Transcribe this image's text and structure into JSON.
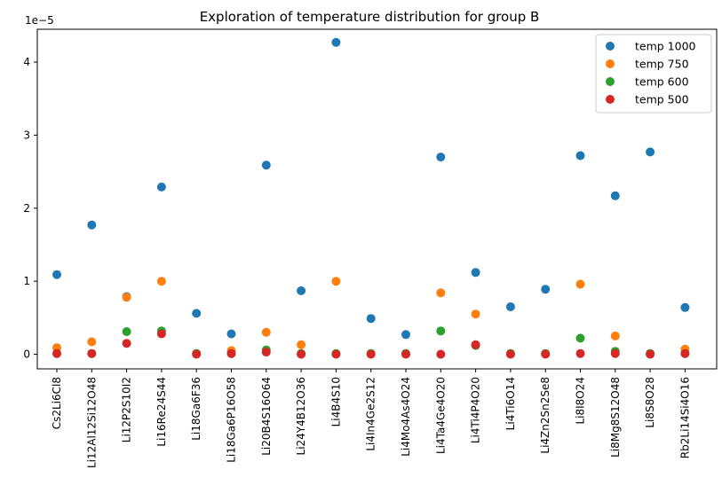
{
  "chart_data": {
    "type": "scatter",
    "title": "Exploration of temperature distribution for group B",
    "xlabel": "",
    "ylabel": "",
    "y_offset_label": "1e−5",
    "ylim": [
      -2e-06,
      4.45e-05
    ],
    "grid": false,
    "legend_position": "top-right",
    "categories": [
      "Cs2Li6Cl8",
      "Li12Al12Si12O48",
      "Li12P2S10I2",
      "Li16Re24S44",
      "Li18Ga6F36",
      "Li18Ga6P16O58",
      "Li20B4S16O64",
      "Li24Y4B12O36",
      "Li4B4S10",
      "Li4In4Ge2S12",
      "Li4Mo4As4O24",
      "Li4Ta4Ge4O20",
      "Li4Ti4P4O20",
      "Li4Ti6O14",
      "Li4Zn2Sn2Se8",
      "Li8I8O24",
      "Li8Mg8S12O48",
      "Li8S8O28",
      "Rb2Li14Si4O16"
    ],
    "yticks": [
      {
        "value": 0,
        "label": "0"
      },
      {
        "value": 1e-05,
        "label": "1"
      },
      {
        "value": 2e-05,
        "label": "2"
      },
      {
        "value": 3e-05,
        "label": "3"
      },
      {
        "value": 4e-05,
        "label": "4"
      }
    ],
    "series": [
      {
        "name": "temp 1000",
        "color": "#1f77b4",
        "values": [
          1.09e-05,
          1.77e-05,
          7.9e-06,
          2.29e-05,
          5.6e-06,
          2.8e-06,
          2.59e-05,
          8.7e-06,
          4.27e-05,
          4.9e-06,
          2.7e-06,
          2.7e-05,
          1.12e-05,
          6.5e-06,
          8.9e-06,
          2.72e-05,
          2.17e-05,
          2.77e-05,
          6.4e-06
        ]
      },
      {
        "name": "temp 750",
        "color": "#ff7f0e",
        "values": [
          9e-07,
          1.7e-06,
          7.8e-06,
          1e-05,
          1e-07,
          5e-07,
          3e-06,
          1.3e-06,
          1e-05,
          1e-07,
          1e-07,
          8.4e-06,
          5.5e-06,
          1e-07,
          1e-07,
          9.6e-06,
          2.5e-06,
          1e-07,
          7e-07
        ]
      },
      {
        "name": "temp 600",
        "color": "#2ca02c",
        "values": [
          1e-07,
          1e-07,
          3.1e-06,
          3.2e-06,
          1e-07,
          1e-07,
          6e-07,
          1e-07,
          1e-07,
          1e-07,
          1e-07,
          3.2e-06,
          1.2e-06,
          1e-07,
          1e-07,
          2.2e-06,
          4e-07,
          1e-07,
          1e-07
        ]
      },
      {
        "name": "temp 500",
        "color": "#d62728",
        "values": [
          1e-07,
          1e-07,
          1.5e-06,
          2.8e-06,
          0.0,
          1e-07,
          3e-07,
          0.0,
          0.0,
          0.0,
          0.0,
          0.0,
          1.3e-06,
          0.0,
          0.0,
          1e-07,
          1e-07,
          0.0,
          1e-07
        ]
      }
    ]
  }
}
